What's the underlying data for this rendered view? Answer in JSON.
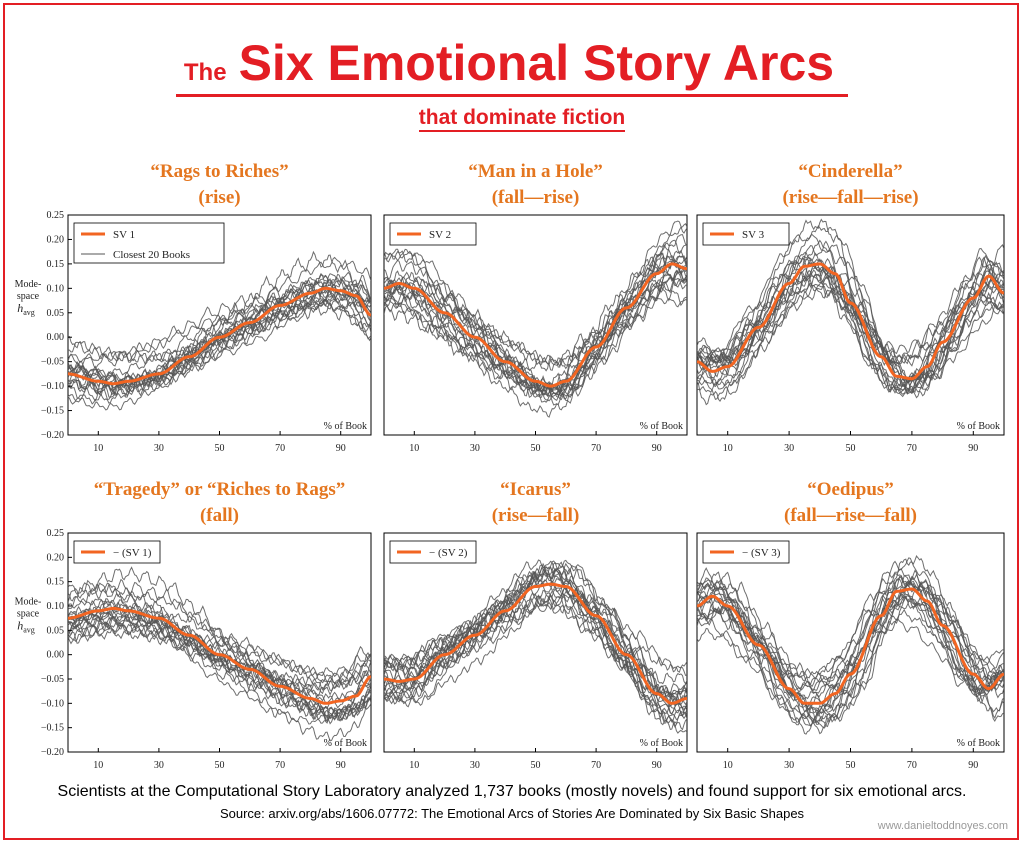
{
  "header": {
    "title_small": "The",
    "title_big": "Six Emotional Story Arcs",
    "subtitle": "that dominate fiction"
  },
  "footer": {
    "caption": "Scientists at the Computational Story Laboratory analyzed 1,737 books (mostly novels) and found support for six emotional arcs.",
    "source": "Source: arxiv.org/abs/1606.07772: The Emotional Arcs of Stories Are Dominated by Six Basic Shapes",
    "credit": "www.danieltoddnoyes.com"
  },
  "colors": {
    "accent": "#e31e24",
    "arc": "#f26522",
    "books": "#555555",
    "panel_title": "#e4761f"
  },
  "chart_data": [
    {
      "type": "line",
      "title": "“Rags to Riches”",
      "subtitle": "(rise)",
      "xlabel": "% of Book",
      "ylabel": [
        "Mode-",
        "space",
        "h",
        "avg"
      ],
      "xticks": [
        10,
        30,
        50,
        70,
        90
      ],
      "yticks": [
        "0.25",
        "0.20",
        "0.15",
        "0.10",
        "0.05",
        "0.00",
        "−0.05",
        "−0.10",
        "−0.15",
        "−0.20"
      ],
      "xlim": [
        0,
        100
      ],
      "ylim": [
        -0.2,
        0.25
      ],
      "legend": [
        "SV 1",
        "Closest 20 Books"
      ],
      "legend_position": "top-left",
      "series": [
        {
          "name": "SV 1",
          "x": [
            0,
            10,
            15,
            20,
            30,
            40,
            50,
            60,
            70,
            80,
            85,
            90,
            95,
            100
          ],
          "y": [
            -0.075,
            -0.09,
            -0.095,
            -0.09,
            -0.075,
            -0.04,
            0.0,
            0.03,
            0.065,
            0.09,
            0.1,
            0.095,
            0.085,
            0.045
          ]
        },
        {
          "name": "Closest 20 Books",
          "count": 20
        }
      ]
    },
    {
      "type": "line",
      "title": "“Man in a Hole”",
      "subtitle": "(fall—rise)",
      "xlabel": "% of Book",
      "xticks": [
        10,
        30,
        50,
        70,
        90
      ],
      "xlim": [
        0,
        100
      ],
      "ylim": [
        -0.2,
        0.25
      ],
      "legend": [
        "SV 2"
      ],
      "legend_position": "top-left",
      "series": [
        {
          "name": "SV 2",
          "x": [
            0,
            5,
            10,
            20,
            30,
            40,
            50,
            55,
            60,
            70,
            80,
            90,
            95,
            100
          ],
          "y": [
            0.1,
            0.11,
            0.1,
            0.05,
            0.0,
            -0.05,
            -0.09,
            -0.1,
            -0.09,
            -0.02,
            0.06,
            0.13,
            0.15,
            0.14
          ]
        },
        {
          "name": "Closest 20 Books",
          "count": 20
        }
      ]
    },
    {
      "type": "line",
      "title": "“Cinderella”",
      "subtitle": "(rise—fall—rise)",
      "xlabel": "% of Book",
      "xticks": [
        10,
        30,
        50,
        70,
        90
      ],
      "xlim": [
        0,
        100
      ],
      "ylim": [
        -0.2,
        0.25
      ],
      "legend": [
        "SV 3"
      ],
      "legend_position": "top-left",
      "series": [
        {
          "name": "SV 3",
          "x": [
            0,
            5,
            10,
            20,
            30,
            35,
            40,
            45,
            50,
            60,
            65,
            70,
            75,
            80,
            90,
            95,
            100
          ],
          "y": [
            -0.05,
            -0.07,
            -0.06,
            0.02,
            0.11,
            0.145,
            0.15,
            0.13,
            0.07,
            -0.04,
            -0.08,
            -0.085,
            -0.06,
            -0.01,
            0.08,
            0.125,
            0.09
          ]
        },
        {
          "name": "Closest 20 Books",
          "count": 20
        }
      ]
    },
    {
      "type": "line",
      "title": "“Tragedy” or “Riches to Rags”",
      "subtitle": "(fall)",
      "xlabel": "% of Book",
      "ylabel": [
        "Mode-",
        "space",
        "h",
        "avg"
      ],
      "xticks": [
        10,
        30,
        50,
        70,
        90
      ],
      "yticks": [
        "0.25",
        "0.20",
        "0.15",
        "0.10",
        "0.05",
        "0.00",
        "−0.05",
        "−0.10",
        "−0.15",
        "−0.20"
      ],
      "xlim": [
        0,
        100
      ],
      "ylim": [
        -0.2,
        0.25
      ],
      "legend": [
        "− (SV 1)"
      ],
      "legend_position": "top-left",
      "series": [
        {
          "name": "− (SV 1)",
          "x": [
            0,
            10,
            15,
            20,
            30,
            40,
            50,
            60,
            70,
            80,
            85,
            90,
            95,
            100
          ],
          "y": [
            0.075,
            0.09,
            0.095,
            0.09,
            0.075,
            0.04,
            0.0,
            -0.03,
            -0.065,
            -0.09,
            -0.1,
            -0.095,
            -0.085,
            -0.045
          ]
        },
        {
          "name": "Closest 20 Books",
          "count": 20
        }
      ]
    },
    {
      "type": "line",
      "title": "“Icarus”",
      "subtitle": "(rise—fall)",
      "xlabel": "% of Book",
      "xticks": [
        10,
        30,
        50,
        70,
        90
      ],
      "xlim": [
        0,
        100
      ],
      "ylim": [
        -0.2,
        0.25
      ],
      "legend": [
        "− (SV 2)"
      ],
      "legend_position": "top-left",
      "series": [
        {
          "name": "− (SV 2)",
          "x": [
            0,
            5,
            10,
            20,
            30,
            40,
            50,
            55,
            60,
            70,
            80,
            90,
            95,
            100
          ],
          "y": [
            -0.05,
            -0.055,
            -0.05,
            0.0,
            0.04,
            0.09,
            0.14,
            0.145,
            0.14,
            0.08,
            0.0,
            -0.08,
            -0.1,
            -0.09
          ]
        },
        {
          "name": "Closest 20 Books",
          "count": 20
        }
      ]
    },
    {
      "type": "line",
      "title": "“Oedipus”",
      "subtitle": "(fall—rise—fall)",
      "xlabel": "% of Book",
      "xticks": [
        10,
        30,
        50,
        70,
        90
      ],
      "xlim": [
        0,
        100
      ],
      "ylim": [
        -0.2,
        0.25
      ],
      "legend": [
        "− (SV 3)"
      ],
      "legend_position": "top-left",
      "series": [
        {
          "name": "− (SV 3)",
          "x": [
            0,
            5,
            10,
            20,
            30,
            35,
            40,
            45,
            50,
            60,
            65,
            70,
            75,
            80,
            90,
            95,
            100
          ],
          "y": [
            0.1,
            0.12,
            0.1,
            0.02,
            -0.07,
            -0.1,
            -0.1,
            -0.08,
            -0.04,
            0.08,
            0.13,
            0.135,
            0.11,
            0.06,
            -0.04,
            -0.07,
            -0.04
          ]
        },
        {
          "name": "Closest 20 Books",
          "count": 20
        }
      ]
    }
  ]
}
